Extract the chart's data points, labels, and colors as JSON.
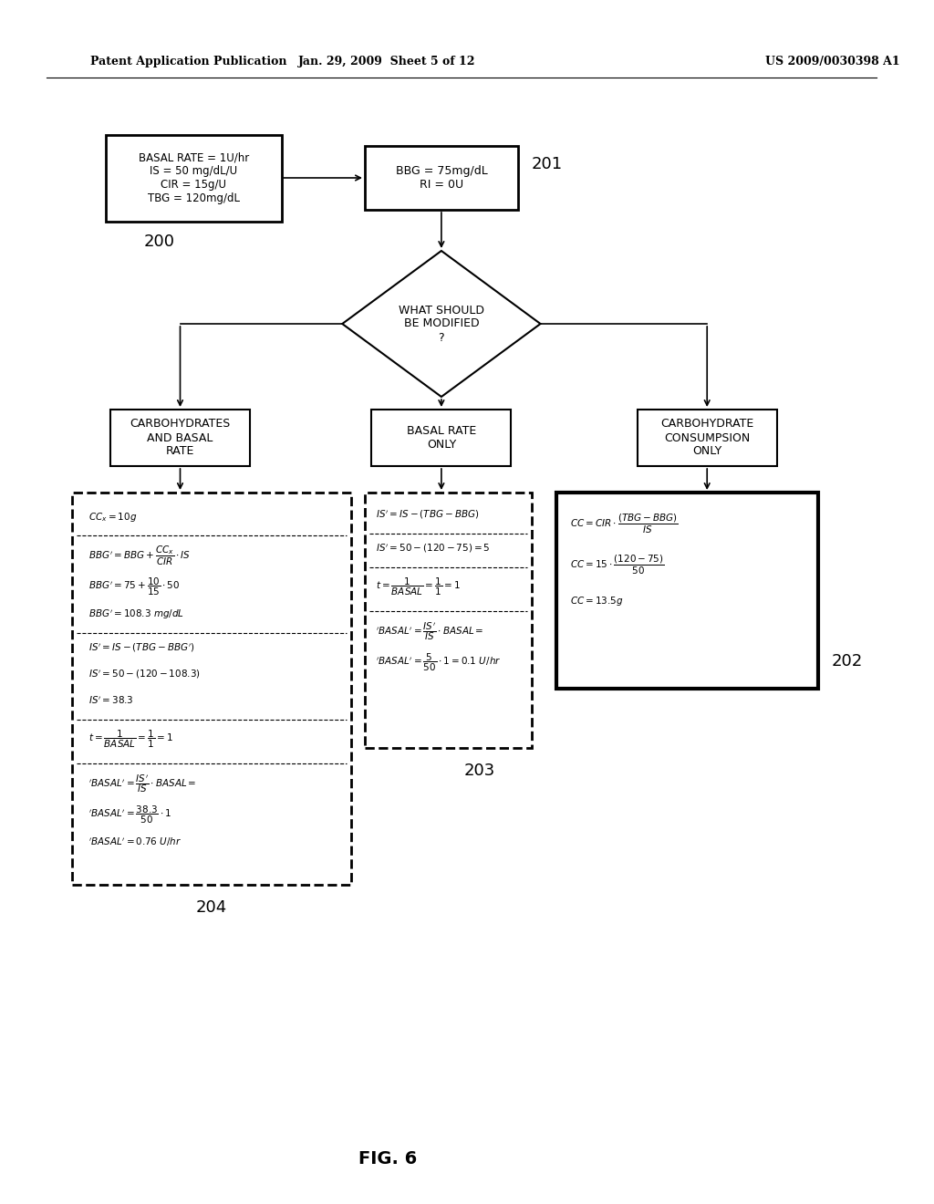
{
  "title_left": "Patent Application Publication",
  "title_mid": "Jan. 29, 2009  Sheet 5 of 12",
  "title_right": "US 2009/0030398 A1",
  "fig_label": "FIG. 6",
  "background": "#ffffff",
  "box200_text": "BASAL RATE = 1U/hr\nIS = 50 mg/dL/U\nCIR = 15g/U\nTBG = 120mg/dL",
  "box201_text": "BBG = 75mg/dL\nRI = 0U",
  "diamond_text": "WHAT SHOULD\nBE MODIFIED\n?",
  "box_left_label": "CARBOHYDRATES\nAND BASAL\nRATE",
  "box_mid_label": "BASAL RATE\nONLY",
  "box_right_label": "CARBOHYDRATE\nCONSUMPSION\nONLY",
  "box204_lines": [
    "CCₓ = 10g",
    "",
    "BBG’ = BBG +         * IS",
    "BBG’ = 75 +     * 50",
    "BBG’ = 108.3 mg/dL",
    "",
    "IS’=IS – (TBG–BBG’)",
    "IS’ = 50–(120–108.3)",
    "IS’ = 38.3",
    "",
    "t =        =    = 1",
    "",
    "’BASAL’ =       * BASAL =",
    "’BASAL’ =        * 1",
    "’BASAL’ = 0.76 U/hr"
  ],
  "box203_lines": [
    "IS’=IS – (TBG–BBG)",
    "",
    "IS’= 50–(120–75) = 5",
    "",
    "t =        =    = 1",
    "",
    "’BASAL’ =       * BASAL =",
    "’BASAL’ =        * 1 = 0.1 U/hr"
  ],
  "box202_lines": [
    "CC = CIR•",
    "",
    "CC =15•",
    "",
    "CC = 13.5g"
  ]
}
